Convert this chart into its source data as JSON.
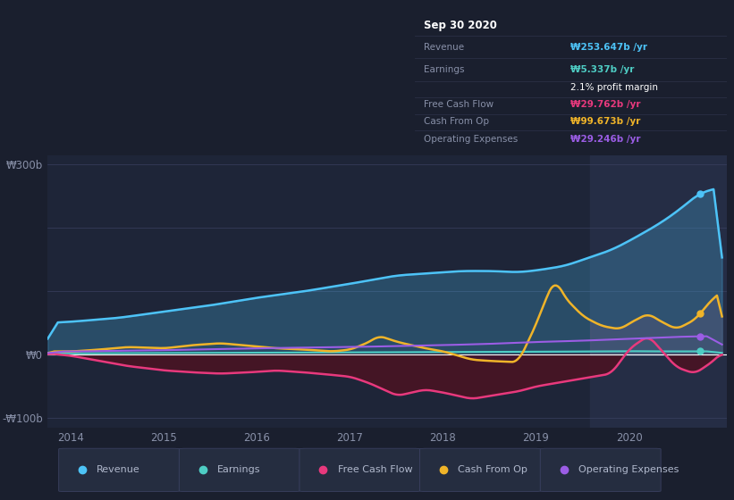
{
  "bg_color": "#1a1f2e",
  "plot_bg_color": "#1e2538",
  "highlight_bg": "#252d45",
  "colors": {
    "revenue": "#4dc3f7",
    "earnings": "#4ecdc4",
    "free_cash_flow": "#e8397d",
    "cash_from_op": "#f0b429",
    "operating_expenses": "#9b5de5"
  },
  "ylabel_300": "₩300b",
  "ylabel_0": "₩0",
  "ylabel_n100": "-₩100b",
  "x_ticks": [
    2014,
    2015,
    2016,
    2017,
    2018,
    2019,
    2020
  ],
  "tooltip": {
    "date": "Sep 30 2020",
    "revenue_label": "Revenue",
    "revenue_val": "₩253.647b /yr",
    "earnings_label": "Earnings",
    "earnings_val": "₩5.337b /yr",
    "profit_margin": "2.1% profit margin",
    "fcf_label": "Free Cash Flow",
    "fcf_val": "₩29.762b /yr",
    "cfop_label": "Cash From Op",
    "cfop_val": "₩99.673b /yr",
    "opex_label": "Operating Expenses",
    "opex_val": "₩29.246b /yr"
  },
  "legend": [
    "Revenue",
    "Earnings",
    "Free Cash Flow",
    "Cash From Op",
    "Operating Expenses"
  ]
}
